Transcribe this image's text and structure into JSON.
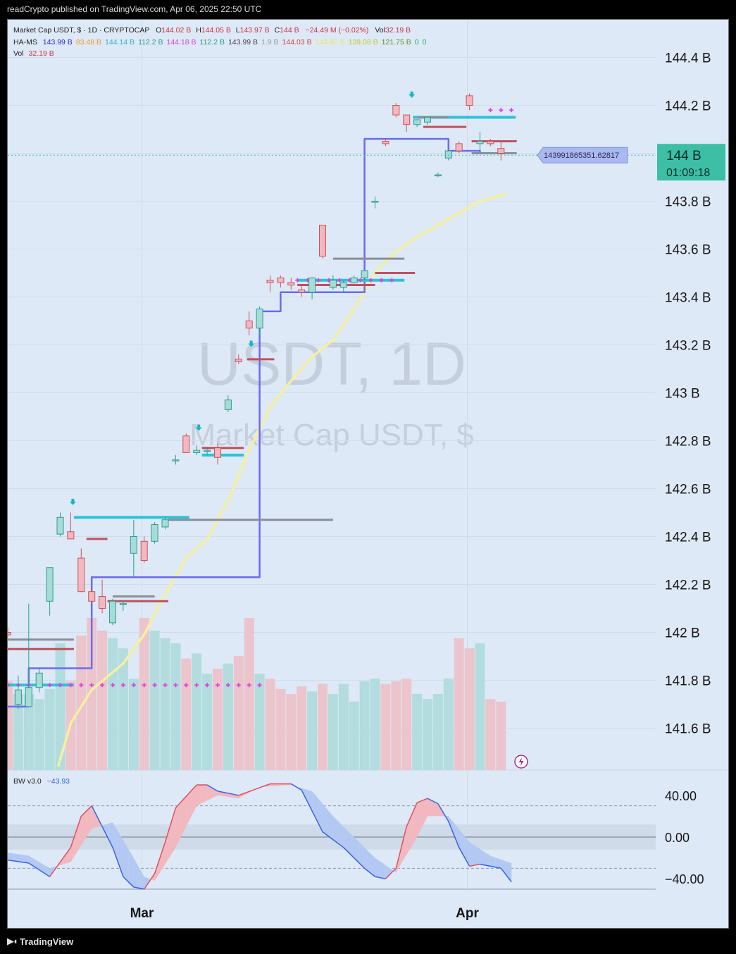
{
  "header": {
    "publisher": "readCrypto published on TradingView.com, Apr 06, 2025 22:50 UTC"
  },
  "legend": {
    "row1": {
      "title": "Market Cap USDT, $ · 1D · CRYPTOCAP",
      "o_label": "O",
      "o": "144.02 B",
      "h_label": "H",
      "h": "144.05 B",
      "l_label": "L",
      "l": "143.97 B",
      "c_label": "C",
      "c": "144 B",
      "chg": "−24.49 M (−0.02%)",
      "vol_label": "Vol",
      "vol": "32.19 B"
    },
    "row2": {
      "label": "HA-MS",
      "values": [
        "143.99 B",
        "83.48 B",
        "144.14 B",
        "112.2 B",
        "144.18 B",
        "112.2 B",
        "143.99 B",
        "1.9 B",
        "144.03 B",
        "143.92 B",
        "139.08 B",
        "121.75 B",
        "0",
        "0"
      ],
      "colors": [
        "#2b2bd6",
        "#f59b20",
        "#27b8c8",
        "#2a9a8a",
        "#e040e0",
        "#2a9a8a",
        "#444444",
        "#9a9a9a",
        "#d04040",
        "#e8e850",
        "#c8c820",
        "#6a8a20",
        "#20b060",
        "#20b060"
      ]
    },
    "row3": {
      "label": "Vol",
      "value": "32.19 B"
    }
  },
  "watermark": {
    "line1": "USDT, 1D",
    "line2": "Market Cap USDT, $"
  },
  "price_axis": {
    "ticks": [
      "144.4 B",
      "144.2 B",
      "144 B",
      "143.8 B",
      "143.6 B",
      "143.4 B",
      "143.2 B",
      "143 B",
      "142.8 B",
      "142.6 B",
      "142.4 B",
      "142.2 B",
      "142 B",
      "141.8 B",
      "141.6 B"
    ],
    "tick_values": [
      144.4,
      144.2,
      144.0,
      143.8,
      143.6,
      143.4,
      143.2,
      143.0,
      142.8,
      142.6,
      142.4,
      142.2,
      142.0,
      141.8,
      141.6
    ]
  },
  "last_price": {
    "label": "144 B",
    "countdown": "01:09:18",
    "tooltip": "143991865351.62817",
    "value": 143.992
  },
  "time_axis": {
    "labels": [
      "Mar",
      "Apr"
    ]
  },
  "oscillator": {
    "label": "BW v3.0",
    "value": "−43.93",
    "ticks": [
      "40.00",
      "0.00",
      "−40.00"
    ]
  },
  "footer": {
    "brand": "TradingView"
  },
  "colors": {
    "up": "#3bb5a7",
    "down": "#e0606e",
    "up_body": "#a7dcd6",
    "down_body": "#f1b9bf",
    "ma": "#6b6bf0",
    "ema": "#f5f0a0",
    "cyan": "#2fc2d6",
    "magenta": "#e040e0",
    "badge": "#3cbfa5"
  },
  "chart_data": {
    "type": "candlestick",
    "title": "Market Cap USDT, $ · 1D · CRYPTOCAP",
    "y_unit": "B",
    "ylim": [
      141.42,
      144.6
    ],
    "candles": [
      {
        "o": 142.0,
        "h": 142.02,
        "l": 141.98,
        "c": 141.99
      },
      {
        "o": 141.7,
        "h": 141.82,
        "l": 141.68,
        "c": 141.76
      },
      {
        "o": 141.69,
        "h": 142.12,
        "l": 141.69,
        "c": 141.77
      },
      {
        "o": 141.77,
        "h": 141.85,
        "l": 141.75,
        "c": 141.83
      },
      {
        "o": 142.13,
        "h": 142.27,
        "l": 142.07,
        "c": 142.27
      },
      {
        "o": 142.41,
        "h": 142.5,
        "l": 142.4,
        "c": 142.48
      },
      {
        "o": 142.42,
        "h": 142.5,
        "l": 142.39,
        "c": 142.39
      },
      {
        "o": 142.31,
        "h": 142.35,
        "l": 142.17,
        "c": 142.17
      },
      {
        "o": 142.17,
        "h": 142.19,
        "l": 142.12,
        "c": 142.13
      },
      {
        "o": 142.15,
        "h": 142.22,
        "l": 142.08,
        "c": 142.1
      },
      {
        "o": 142.04,
        "h": 142.14,
        "l": 142.03,
        "c": 142.13
      },
      {
        "o": 142.12,
        "h": 142.13,
        "l": 142.09,
        "c": 142.12
      },
      {
        "o": 142.33,
        "h": 142.47,
        "l": 142.23,
        "c": 142.4
      },
      {
        "o": 142.38,
        "h": 142.4,
        "l": 142.29,
        "c": 142.3
      },
      {
        "o": 142.38,
        "h": 142.46,
        "l": 142.37,
        "c": 142.45
      },
      {
        "o": 142.44,
        "h": 142.48,
        "l": 142.43,
        "c": 142.47
      },
      {
        "o": 142.72,
        "h": 142.74,
        "l": 142.7,
        "c": 142.72
      },
      {
        "o": 142.82,
        "h": 142.83,
        "l": 142.75,
        "c": 142.75
      },
      {
        "o": 142.75,
        "h": 142.78,
        "l": 142.74,
        "c": 142.76
      },
      {
        "o": 142.76,
        "h": 142.77,
        "l": 142.74,
        "c": 142.76
      },
      {
        "o": 142.77,
        "h": 142.79,
        "l": 142.7,
        "c": 142.73
      },
      {
        "o": 142.93,
        "h": 142.99,
        "l": 142.92,
        "c": 142.97
      },
      {
        "o": 143.14,
        "h": 143.16,
        "l": 143.12,
        "c": 143.13
      },
      {
        "o": 143.3,
        "h": 143.34,
        "l": 143.24,
        "c": 143.27
      },
      {
        "o": 143.27,
        "h": 143.36,
        "l": 143.23,
        "c": 143.35
      },
      {
        "o": 143.47,
        "h": 143.49,
        "l": 143.42,
        "c": 143.46
      },
      {
        "o": 143.48,
        "h": 143.49,
        "l": 143.44,
        "c": 143.46
      },
      {
        "o": 143.46,
        "h": 143.48,
        "l": 143.43,
        "c": 143.45
      },
      {
        "o": 143.43,
        "h": 143.45,
        "l": 143.4,
        "c": 143.42
      },
      {
        "o": 143.42,
        "h": 143.48,
        "l": 143.39,
        "c": 143.48
      },
      {
        "o": 143.7,
        "h": 143.7,
        "l": 143.56,
        "c": 143.57
      },
      {
        "o": 143.44,
        "h": 143.49,
        "l": 143.43,
        "c": 143.47
      },
      {
        "o": 143.44,
        "h": 143.47,
        "l": 143.42,
        "c": 143.46
      },
      {
        "o": 143.46,
        "h": 143.49,
        "l": 143.45,
        "c": 143.48
      },
      {
        "o": 143.48,
        "h": 143.51,
        "l": 143.47,
        "c": 143.51
      },
      {
        "o": 143.8,
        "h": 143.82,
        "l": 143.77,
        "c": 143.8
      },
      {
        "o": 144.05,
        "h": 144.06,
        "l": 144.03,
        "c": 144.04
      },
      {
        "o": 144.2,
        "h": 144.21,
        "l": 144.15,
        "c": 144.16
      },
      {
        "o": 144.16,
        "h": 144.16,
        "l": 144.09,
        "c": 144.12
      },
      {
        "o": 144.12,
        "h": 144.14,
        "l": 144.11,
        "c": 144.14
      },
      {
        "o": 144.13,
        "h": 144.15,
        "l": 144.12,
        "c": 144.15
      },
      {
        "o": 143.91,
        "h": 143.92,
        "l": 143.9,
        "c": 143.91
      },
      {
        "o": 143.98,
        "h": 144.01,
        "l": 143.97,
        "c": 144.01
      },
      {
        "o": 144.04,
        "h": 144.05,
        "l": 144.0,
        "c": 144.01
      },
      {
        "o": 144.24,
        "h": 144.25,
        "l": 144.18,
        "c": 144.2
      },
      {
        "o": 144.04,
        "h": 144.09,
        "l": 144.01,
        "c": 144.05
      },
      {
        "o": 144.05,
        "h": 144.06,
        "l": 144.03,
        "c": 144.04
      },
      {
        "o": 144.02,
        "h": 144.05,
        "l": 143.97,
        "c": 144.0
      }
    ],
    "volume": [
      35,
      30,
      30,
      28,
      32,
      50,
      35,
      53,
      60,
      55,
      52,
      48,
      36,
      60,
      55,
      52,
      50,
      44,
      46,
      38,
      40,
      42,
      45,
      60,
      38,
      36,
      32,
      30,
      33,
      31,
      34,
      30,
      34,
      27,
      35,
      36,
      34,
      35,
      36,
      30,
      28,
      30,
      36,
      52,
      48,
      50,
      28,
      27
    ],
    "ma_levels": [
      {
        "from": 0,
        "to": 2,
        "v": 141.69
      },
      {
        "from": 2,
        "to": 8,
        "v": 141.85
      },
      {
        "from": 8,
        "to": 24,
        "v": 142.23
      },
      {
        "from": 24,
        "to": 26,
        "v": 143.34
      },
      {
        "from": 26,
        "to": 34,
        "v": 143.42
      },
      {
        "from": 34,
        "to": 42,
        "v": 144.06
      },
      {
        "from": 42,
        "to": 45,
        "v": 144.01
      },
      {
        "from": 45,
        "to": 48,
        "v": 144.0
      }
    ],
    "ema": [
      {
        "i": 4.8,
        "v": 141.44
      },
      {
        "i": 6,
        "v": 141.62
      },
      {
        "i": 8,
        "v": 141.76
      },
      {
        "i": 11,
        "v": 141.87
      },
      {
        "i": 13,
        "v": 141.99
      },
      {
        "i": 15,
        "v": 142.16
      },
      {
        "i": 17,
        "v": 142.31
      },
      {
        "i": 19,
        "v": 142.39
      },
      {
        "i": 21,
        "v": 142.55
      },
      {
        "i": 23,
        "v": 142.76
      },
      {
        "i": 25,
        "v": 142.94
      },
      {
        "i": 27,
        "v": 143.05
      },
      {
        "i": 29,
        "v": 143.15
      },
      {
        "i": 31,
        "v": 143.22
      },
      {
        "i": 33,
        "v": 143.35
      },
      {
        "i": 35,
        "v": 143.5
      },
      {
        "i": 37,
        "v": 143.59
      },
      {
        "i": 39,
        "v": 143.65
      },
      {
        "i": 41,
        "v": 143.7
      },
      {
        "i": 43,
        "v": 143.75
      },
      {
        "i": 45,
        "v": 143.8
      },
      {
        "i": 47.5,
        "v": 143.83
      }
    ],
    "hlines": [
      {
        "from": 0,
        "to": 6.3,
        "v": 141.78,
        "color": "#2fc2d6",
        "width": 4
      },
      {
        "from": 6.3,
        "to": 17.3,
        "v": 142.48,
        "color": "#2fc2d6",
        "width": 4
      },
      {
        "from": 0,
        "to": 6.3,
        "v": 141.97,
        "color": "#8a8f99",
        "width": 3
      },
      {
        "from": 0,
        "to": 6.3,
        "v": 141.93,
        "color": "#c0505e",
        "width": 3
      },
      {
        "from": 9.5,
        "to": 15.3,
        "v": 142.13,
        "color": "#c0505e",
        "width": 3
      },
      {
        "from": 15.3,
        "to": 31,
        "v": 142.47,
        "color": "#8a8f99",
        "width": 3
      },
      {
        "from": 7.5,
        "to": 9.5,
        "v": 142.39,
        "color": "#c0505e",
        "width": 3
      },
      {
        "from": 10,
        "to": 14,
        "v": 142.15,
        "color": "#8a8f99",
        "width": 3
      },
      {
        "from": 18.5,
        "to": 22.5,
        "v": 142.74,
        "color": "#2fc2d6",
        "width": 4
      },
      {
        "from": 18.5,
        "to": 22.5,
        "v": 142.77,
        "color": "#c0505e",
        "width": 3
      },
      {
        "from": 22.8,
        "to": 25.4,
        "v": 143.14,
        "color": "#c0505e",
        "width": 3
      },
      {
        "from": 27.6,
        "to": 37.8,
        "v": 143.47,
        "color": "#2fc2d6",
        "width": 4
      },
      {
        "from": 27.6,
        "to": 35,
        "v": 143.45,
        "color": "#c0505e",
        "width": 3
      },
      {
        "from": 31,
        "to": 37.8,
        "v": 143.56,
        "color": "#8a8f99",
        "width": 3
      },
      {
        "from": 35,
        "to": 38.8,
        "v": 143.5,
        "color": "#c0505e",
        "width": 3
      },
      {
        "from": 38.6,
        "to": 48.4,
        "v": 144.15,
        "color": "#2fc2d6",
        "width": 4
      },
      {
        "from": 39,
        "to": 42,
        "v": 144.15,
        "color": "#8a8f99",
        "width": 3
      },
      {
        "from": 39.6,
        "to": 43.7,
        "v": 144.11,
        "color": "#c0505e",
        "width": 3
      },
      {
        "from": 44.2,
        "to": 48.5,
        "v": 144.05,
        "color": "#c0505e",
        "width": 3
      },
      {
        "from": 44.2,
        "to": 48.5,
        "v": 144.0,
        "color": "#8a8f99",
        "width": 3
      }
    ],
    "cross_markers": [
      {
        "from": 0,
        "to": 24.5,
        "v": 141.78
      },
      {
        "from": 27.6,
        "to": 37.1,
        "v": 143.47
      },
      {
        "from": 46,
        "to": 48.2,
        "v": 144.18
      }
    ],
    "arrows": [
      {
        "i": 6.2,
        "v": 142.54
      },
      {
        "i": 18.2,
        "v": 142.85
      },
      {
        "i": 23.2,
        "v": 143.2
      },
      {
        "i": 38.5,
        "v": 144.24
      }
    ],
    "oscillator": {
      "ylim": [
        -60,
        55
      ],
      "hlines": [
        30,
        0,
        -30
      ],
      "fast": [
        {
          "i": 0,
          "v": -22
        },
        {
          "i": 2,
          "v": -25
        },
        {
          "i": 4,
          "v": -38
        },
        {
          "i": 6,
          "v": -10
        },
        {
          "i": 7,
          "v": 20
        },
        {
          "i": 8,
          "v": 30
        },
        {
          "i": 10,
          "v": -10
        },
        {
          "i": 11,
          "v": -38
        },
        {
          "i": 12,
          "v": -48
        },
        {
          "i": 13,
          "v": -50
        },
        {
          "i": 14,
          "v": -35
        },
        {
          "i": 15,
          "v": -5
        },
        {
          "i": 16,
          "v": 28
        },
        {
          "i": 18,
          "v": 50
        },
        {
          "i": 19,
          "v": 50
        },
        {
          "i": 20,
          "v": 44
        },
        {
          "i": 22,
          "v": 40
        },
        {
          "i": 25,
          "v": 51
        },
        {
          "i": 27,
          "v": 51
        },
        {
          "i": 28,
          "v": 45
        },
        {
          "i": 30,
          "v": 5
        },
        {
          "i": 32,
          "v": -10
        },
        {
          "i": 34,
          "v": -30
        },
        {
          "i": 35,
          "v": -38
        },
        {
          "i": 36,
          "v": -40
        },
        {
          "i": 37,
          "v": -30
        },
        {
          "i": 38,
          "v": 10
        },
        {
          "i": 39,
          "v": 33
        },
        {
          "i": 40,
          "v": 37
        },
        {
          "i": 41,
          "v": 32
        },
        {
          "i": 42,
          "v": 15
        },
        {
          "i": 43,
          "v": -10
        },
        {
          "i": 44,
          "v": -28
        },
        {
          "i": 45,
          "v": -26
        },
        {
          "i": 47,
          "v": -30
        },
        {
          "i": 48,
          "v": -43
        }
      ],
      "slow": [
        {
          "i": 0,
          "v": -15
        },
        {
          "i": 2,
          "v": -18
        },
        {
          "i": 4,
          "v": -30
        },
        {
          "i": 6,
          "v": -24
        },
        {
          "i": 8,
          "v": 8
        },
        {
          "i": 10,
          "v": 14
        },
        {
          "i": 12,
          "v": -20
        },
        {
          "i": 13,
          "v": -38
        },
        {
          "i": 14,
          "v": -42
        },
        {
          "i": 16,
          "v": -10
        },
        {
          "i": 18,
          "v": 30
        },
        {
          "i": 20,
          "v": 40
        },
        {
          "i": 22,
          "v": 37
        },
        {
          "i": 24,
          "v": 48
        },
        {
          "i": 27,
          "v": 50
        },
        {
          "i": 29,
          "v": 44
        },
        {
          "i": 31,
          "v": 20
        },
        {
          "i": 33,
          "v": 0
        },
        {
          "i": 35,
          "v": -20
        },
        {
          "i": 37,
          "v": -34
        },
        {
          "i": 39,
          "v": 0
        },
        {
          "i": 40,
          "v": 20
        },
        {
          "i": 42,
          "v": 20
        },
        {
          "i": 44,
          "v": -5
        },
        {
          "i": 46,
          "v": -18
        },
        {
          "i": 48,
          "v": -25
        }
      ]
    }
  }
}
